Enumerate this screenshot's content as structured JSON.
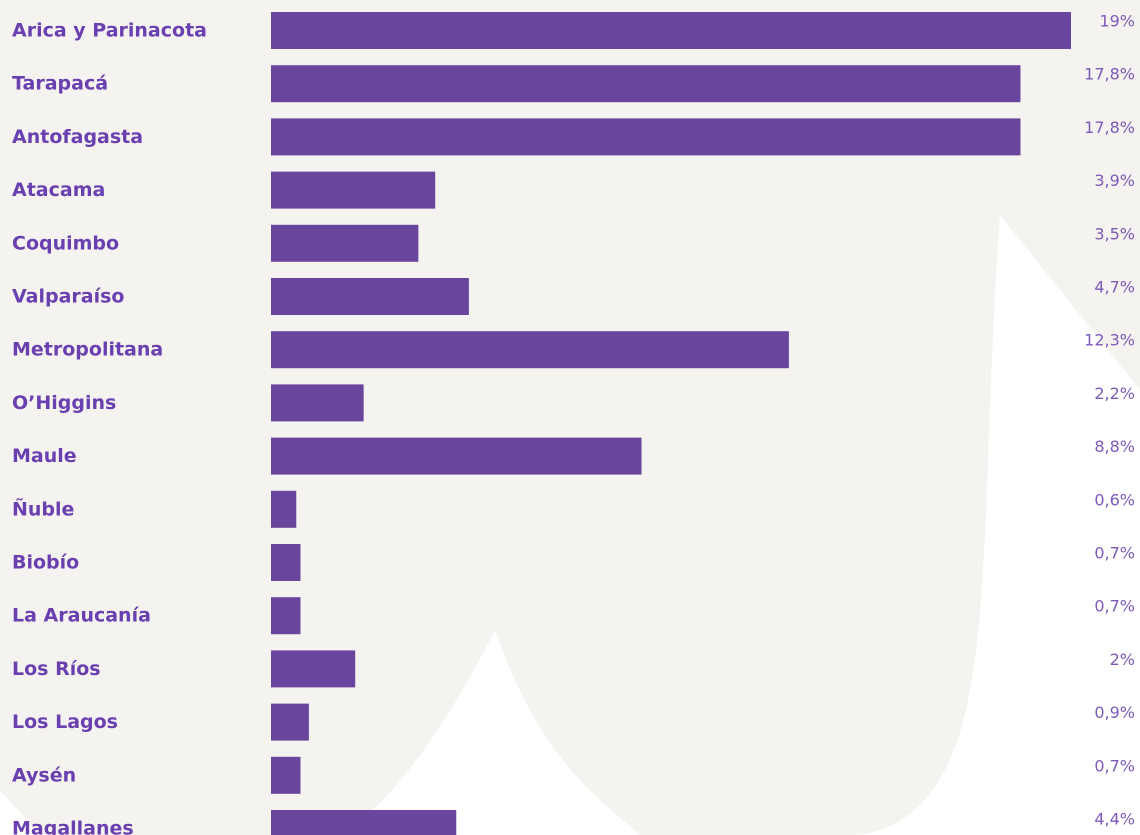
{
  "chart_data": {
    "type": "bar",
    "orientation": "horizontal",
    "categories": [
      "Arica y Parinacota",
      "Tarapacá",
      "Antofagasta",
      "Atacama",
      "Coquimbo",
      "Valparaíso",
      "Metropolitana",
      "O’Higgins",
      "Maule",
      "Ñuble",
      "Biobío",
      "La Araucanía",
      "Los Ríos",
      "Los Lagos",
      "Aysén",
      "Magallanes"
    ],
    "values": [
      19,
      17.8,
      17.8,
      3.9,
      3.5,
      4.7,
      12.3,
      2.2,
      8.8,
      0.6,
      0.7,
      0.7,
      2,
      0.9,
      0.7,
      4.4
    ],
    "value_labels": [
      "19%",
      "17,8%",
      "17,8%",
      "3,9%",
      "3,5%",
      "4,7%",
      "12,3%",
      "2,2%",
      "8,8%",
      "0,6%",
      "0,7%",
      "0,7%",
      "2%",
      "0,9%",
      "0,7%",
      "4,4%"
    ],
    "xlim": [
      0,
      19
    ],
    "grid": false,
    "colors": {
      "bar": "#6a459d",
      "category_text": "#6a3fb0",
      "value_text": "#7d5ab8",
      "background_shape": "#f5f3ef"
    }
  }
}
